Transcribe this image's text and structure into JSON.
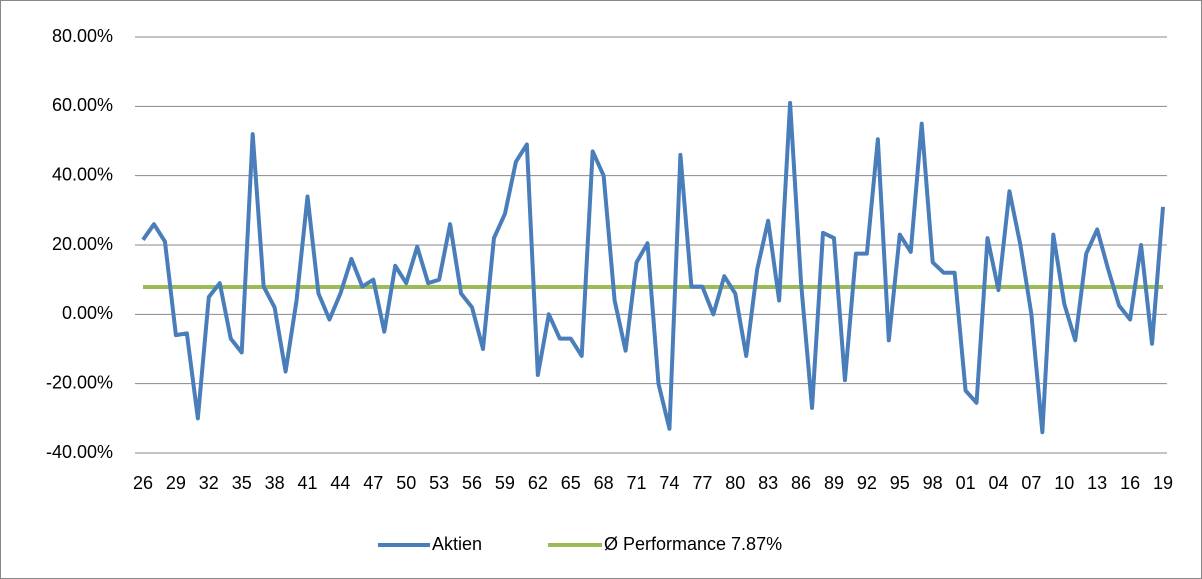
{
  "chart_data": {
    "type": "line",
    "categories": [
      "26",
      null,
      null,
      "29",
      null,
      null,
      "32",
      null,
      null,
      "35",
      null,
      null,
      "38",
      null,
      null,
      "41",
      null,
      null,
      "44",
      null,
      null,
      "47",
      null,
      null,
      "50",
      null,
      null,
      "53",
      null,
      null,
      "56",
      null,
      null,
      "59",
      null,
      null,
      "62",
      null,
      null,
      "65",
      null,
      null,
      "68",
      null,
      null,
      "71",
      null,
      null,
      "74",
      null,
      null,
      "77",
      null,
      null,
      "80",
      null,
      null,
      "83",
      null,
      null,
      "86",
      null,
      null,
      "89",
      null,
      null,
      "92",
      null,
      null,
      "95",
      null,
      null,
      "98",
      null,
      null,
      "01",
      null,
      null,
      "04",
      null,
      null,
      "07",
      null,
      null,
      "10",
      null,
      null,
      "13",
      null,
      null,
      "16",
      null,
      null,
      "19"
    ],
    "series": [
      {
        "name": "Aktien",
        "color": "#4a7ebb",
        "values": [
          21.5,
          26,
          21,
          -6,
          -5.5,
          -30,
          5,
          9,
          -7,
          -11,
          52,
          8,
          2,
          -16.5,
          4,
          34,
          6,
          -1.5,
          6,
          16,
          8,
          10,
          -5,
          14,
          9,
          19.5,
          9,
          10,
          26,
          6,
          2,
          -10,
          22,
          29,
          44,
          49,
          -17.5,
          0,
          -7,
          -7,
          -12,
          47,
          40,
          4,
          -10.5,
          15,
          20.5,
          -20,
          -33,
          46,
          8,
          8,
          0,
          11,
          6,
          -12,
          13,
          27,
          4,
          61,
          9,
          -27,
          23.5,
          22,
          -19,
          17.5,
          17.5,
          50.5,
          -7.5,
          23,
          18,
          55,
          15,
          12,
          12,
          -22,
          -25.5,
          22,
          7,
          35.5,
          20,
          0,
          -34,
          23,
          3,
          -7.5,
          17.5,
          24.5,
          13,
          2.5,
          -1.5,
          20,
          -8.5,
          31
        ]
      }
    ],
    "reference_line": {
      "name": "Ø Performance 7.87%",
      "color": "#9bbb59",
      "value": 7.87
    },
    "ylim": [
      -40,
      80
    ],
    "yticks": [
      {
        "value": -40,
        "label": "-40.00%"
      },
      {
        "value": -20,
        "label": "-20.00%"
      },
      {
        "value": 0,
        "label": "0.00%"
      },
      {
        "value": 20,
        "label": "20.00%"
      },
      {
        "value": 40,
        "label": "40.00%"
      },
      {
        "value": 60,
        "label": "60.00%"
      },
      {
        "value": 80,
        "label": "80.00%"
      }
    ],
    "grid": true,
    "legend": "bottom"
  }
}
